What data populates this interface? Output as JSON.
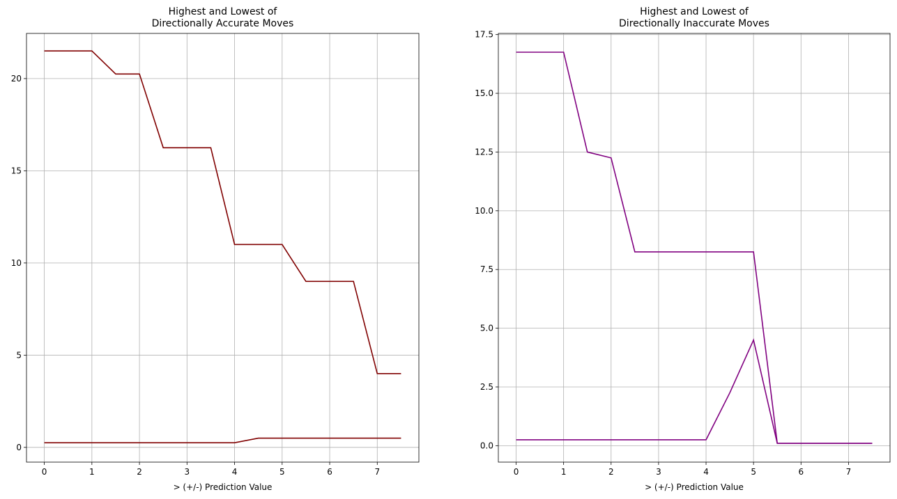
{
  "chart_data": [
    {
      "type": "line",
      "title": "Highest and Lowest of\nDirectionally Accurate Moves",
      "xlabel": "> (+/-) Prediction Value",
      "ylabel": "",
      "xlim": [
        -0.375,
        7.875
      ],
      "ylim": [
        -0.8,
        22.45
      ],
      "xticks": [
        0,
        1,
        2,
        3,
        4,
        5,
        6,
        7
      ],
      "yticks": [
        0,
        5,
        10,
        15,
        20
      ],
      "ytick_labels": [
        "0",
        "5",
        "10",
        "15",
        "20"
      ],
      "grid": true,
      "color": "#800000",
      "x": [
        0,
        0.5,
        1,
        1.5,
        2,
        2.5,
        3,
        3.5,
        4,
        4.5,
        5,
        5.5,
        6,
        6.5,
        7,
        7.5
      ],
      "series": [
        {
          "values": [
            21.5,
            21.5,
            21.5,
            20.25,
            20.25,
            16.25,
            16.25,
            16.25,
            11.0,
            11.0,
            11.0,
            9.0,
            9.0,
            9.0,
            4.0,
            4.0
          ]
        },
        {
          "values": [
            0.25,
            0.25,
            0.25,
            0.25,
            0.25,
            0.25,
            0.25,
            0.25,
            0.25,
            0.5,
            0.5,
            0.5,
            0.5,
            0.5,
            0.5,
            0.5
          ]
        }
      ]
    },
    {
      "type": "line",
      "title": "Highest and Lowest of\nDirectionally Inaccurate Moves",
      "xlabel": "> (+/-) Prediction Value",
      "ylabel": "",
      "xlim": [
        -0.375,
        7.875
      ],
      "ylim": [
        -0.7,
        17.55
      ],
      "xticks": [
        0,
        1,
        2,
        3,
        4,
        5,
        6,
        7
      ],
      "yticks": [
        0,
        2.5,
        5,
        7.5,
        10,
        12.5,
        15,
        17.5
      ],
      "ytick_labels": [
        "0.0",
        "2.5",
        "5.0",
        "7.5",
        "10.0",
        "12.5",
        "15.0",
        "17.5"
      ],
      "grid": true,
      "color": "#800080",
      "x": [
        0,
        0.5,
        1,
        1.5,
        2,
        2.5,
        3,
        3.5,
        4,
        4.5,
        5,
        5.5,
        6,
        6.5,
        7,
        7.5
      ],
      "series": [
        {
          "values": [
            16.75,
            16.75,
            16.75,
            12.5,
            12.25,
            8.25,
            8.25,
            8.25,
            8.25,
            8.25,
            8.25,
            0.1,
            0.1,
            0.1,
            0.1,
            0.1
          ]
        },
        {
          "values": [
            0.25,
            0.25,
            0.25,
            0.25,
            0.25,
            0.25,
            0.25,
            0.25,
            0.25,
            2.25,
            4.5,
            0.1,
            0.1,
            0.1,
            0.1,
            0.1
          ]
        }
      ]
    }
  ]
}
